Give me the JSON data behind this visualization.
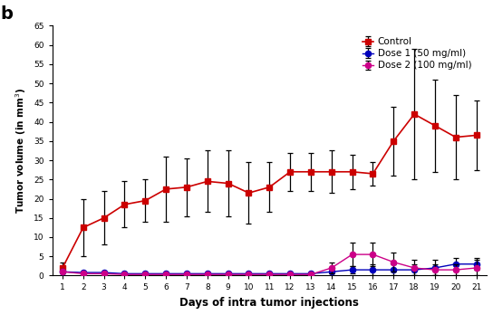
{
  "days": [
    1,
    2,
    3,
    4,
    5,
    6,
    7,
    8,
    9,
    10,
    11,
    12,
    13,
    14,
    15,
    16,
    17,
    18,
    19,
    20,
    21
  ],
  "control_mean": [
    2.0,
    12.5,
    15.0,
    18.5,
    19.5,
    22.5,
    23.0,
    24.5,
    24.0,
    21.5,
    23.0,
    27.0,
    27.0,
    27.0,
    27.0,
    26.5,
    35.0,
    42.0,
    39.0,
    36.0,
    36.5
  ],
  "control_err": [
    1.5,
    7.5,
    7.0,
    6.0,
    5.5,
    8.5,
    7.5,
    8.0,
    8.5,
    8.0,
    6.5,
    5.0,
    5.0,
    5.5,
    4.5,
    3.0,
    9.0,
    17.0,
    12.0,
    11.0,
    9.0
  ],
  "dose1_mean": [
    1.0,
    0.8,
    0.8,
    0.5,
    0.5,
    0.5,
    0.5,
    0.5,
    0.5,
    0.5,
    0.5,
    0.5,
    0.5,
    1.0,
    1.5,
    1.5,
    1.5,
    1.5,
    2.0,
    3.0,
    3.0
  ],
  "dose1_err": [
    0.3,
    0.3,
    0.3,
    0.3,
    0.3,
    0.3,
    0.3,
    0.3,
    0.3,
    0.3,
    0.3,
    0.3,
    0.3,
    0.8,
    1.0,
    1.5,
    1.5,
    1.5,
    2.0,
    1.5,
    1.5
  ],
  "dose2_mean": [
    1.0,
    0.5,
    0.5,
    0.3,
    0.3,
    0.3,
    0.3,
    0.3,
    0.3,
    0.3,
    0.3,
    0.3,
    0.3,
    2.0,
    5.5,
    5.5,
    3.5,
    2.0,
    1.5,
    1.5,
    2.0
  ],
  "dose2_err": [
    0.3,
    0.2,
    0.2,
    0.2,
    0.2,
    0.2,
    0.2,
    0.2,
    0.2,
    0.2,
    0.2,
    0.2,
    0.2,
    1.5,
    3.0,
    3.0,
    2.5,
    2.0,
    1.5,
    1.5,
    2.0
  ],
  "control_color": "#cc0000",
  "dose1_color": "#0000bb",
  "dose2_color": "#cc0088",
  "xlabel": "Days of intra tumor injections",
  "ylabel": "Tumor volume (in mm 3)",
  "ylim": [
    0,
    65
  ],
  "yticks": [
    0,
    5,
    10,
    15,
    20,
    25,
    30,
    35,
    40,
    45,
    50,
    55,
    60,
    65
  ],
  "panel_label": "b",
  "legend_labels": [
    "Control",
    "Dose 1 (50 mg/ml)",
    "Dose 2 (100 mg/ml)"
  ],
  "background_color": "#ffffff"
}
